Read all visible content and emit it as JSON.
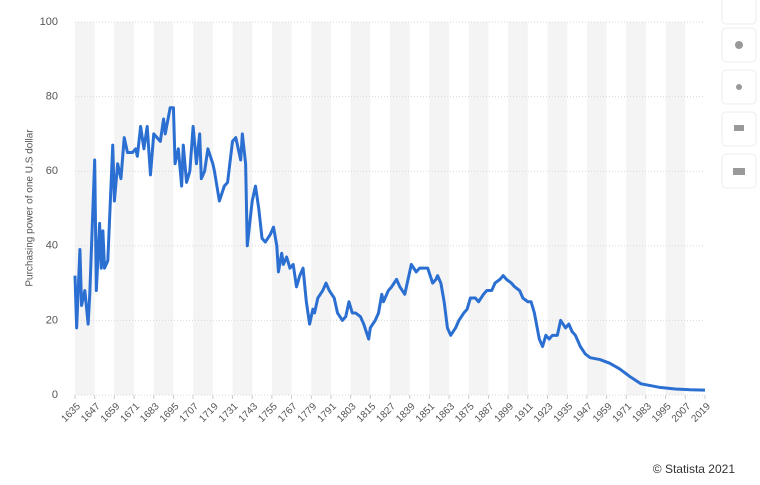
{
  "chart_data": {
    "type": "line",
    "y_label": "Purchasing power of one U.S dollar",
    "credit": "© Statista 2021",
    "xlim": [
      1635,
      2019
    ],
    "ylim": [
      0,
      100
    ],
    "xticks": [
      1635,
      1647,
      1659,
      1671,
      1683,
      1695,
      1707,
      1719,
      1731,
      1743,
      1755,
      1767,
      1779,
      1791,
      1803,
      1815,
      1827,
      1839,
      1851,
      1863,
      1875,
      1887,
      1899,
      1911,
      1923,
      1935,
      1947,
      1959,
      1971,
      1983,
      1995,
      2007,
      2019
    ],
    "yticks": [
      0,
      20,
      40,
      60,
      80,
      100
    ],
    "grid": true,
    "series": [
      {
        "color": "#2a6fd1",
        "x": [
          1635,
          1636,
          1638,
          1639,
          1641,
          1643,
          1644,
          1647,
          1648,
          1650,
          1651,
          1652,
          1653,
          1655,
          1658,
          1659,
          1661,
          1663,
          1665,
          1667,
          1670,
          1672,
          1673,
          1675,
          1677,
          1679,
          1681,
          1683,
          1685,
          1687,
          1689,
          1690,
          1693,
          1695,
          1696,
          1698,
          1700,
          1701,
          1703,
          1705,
          1707,
          1709,
          1711,
          1712,
          1714,
          1716,
          1719,
          1720,
          1723,
          1726,
          1728,
          1731,
          1733,
          1736,
          1737,
          1739,
          1740,
          1743,
          1745,
          1747,
          1749,
          1751,
          1754,
          1756,
          1758,
          1759,
          1761,
          1762,
          1764,
          1766,
          1768,
          1770,
          1772,
          1774,
          1776,
          1778,
          1780,
          1781,
          1783,
          1786,
          1788,
          1790,
          1793,
          1795,
          1798,
          1800,
          1802,
          1804,
          1806,
          1809,
          1811,
          1814,
          1815,
          1818,
          1820,
          1822,
          1823,
          1826,
          1828,
          1831,
          1833,
          1836,
          1838,
          1840,
          1843,
          1845,
          1848,
          1850,
          1853,
          1855,
          1856,
          1858,
          1860,
          1862,
          1864,
          1867,
          1869,
          1872,
          1874,
          1876,
          1879,
          1881,
          1884,
          1886,
          1889,
          1891,
          1894,
          1896,
          1898,
          1901,
          1903,
          1906,
          1908,
          1911,
          1913,
          1915,
          1918,
          1920,
          1922,
          1924,
          1926,
          1929,
          1931,
          1934,
          1936,
          1938,
          1940,
          1943,
          1946,
          1949,
          1955,
          1961,
          1967,
          1973,
          1980,
          1986,
          1992,
          2001,
          2010,
          2019
        ],
        "values": [
          32,
          18,
          39,
          24,
          28,
          19,
          27,
          63,
          28,
          46,
          34,
          44,
          34,
          36,
          67,
          52,
          62,
          58,
          69,
          65,
          65,
          66,
          64,
          72,
          66,
          72,
          59,
          70,
          69,
          68,
          74,
          70,
          77,
          77,
          62,
          66,
          56,
          67,
          57,
          60,
          72,
          62,
          70,
          58,
          60,
          66,
          62,
          60,
          52,
          56,
          57,
          68,
          69,
          63,
          70,
          62,
          40,
          52,
          56,
          50,
          42,
          41,
          43,
          45,
          40,
          33,
          38,
          35,
          37,
          34,
          35,
          29,
          32,
          34,
          25,
          19,
          23,
          22,
          26,
          28,
          30,
          28,
          26,
          22,
          20,
          21,
          25,
          22,
          22,
          21,
          19,
          15,
          18,
          20,
          22,
          27,
          25,
          28,
          29,
          31,
          29,
          27,
          31,
          35,
          33,
          34,
          34,
          34,
          30,
          31,
          32,
          30,
          25,
          18,
          16,
          18,
          20,
          22,
          23,
          26,
          26,
          25,
          27,
          28,
          28,
          30,
          31,
          32,
          31,
          30,
          29,
          28,
          26,
          25,
          25,
          22,
          15,
          13,
          16,
          15,
          16,
          16,
          20,
          18,
          19,
          17,
          16,
          13,
          11,
          10,
          9.5,
          8.5,
          7,
          5,
          3,
          2.5,
          2,
          1.6,
          1.4,
          1.3
        ]
      }
    ]
  }
}
